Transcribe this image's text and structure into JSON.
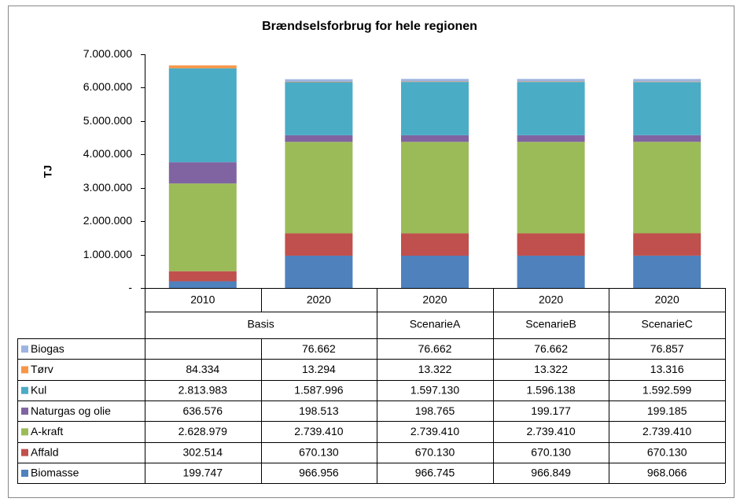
{
  "chart_data": {
    "type": "stacked_bar",
    "title": "Brændselsforbrug for hele regionen",
    "y_label": "TJ",
    "categories": [
      "2010",
      "2020",
      "2020",
      "2020",
      "2020"
    ],
    "groups": [
      {
        "name": "Basis",
        "count": 2
      },
      {
        "name": "ScenarieA",
        "count": 1
      },
      {
        "name": "ScenarieB",
        "count": 1
      },
      {
        "name": "ScenarieC",
        "count": 1
      }
    ],
    "series": [
      {
        "name": "Biogas",
        "color": "#9db4e0",
        "values": [
          null,
          76662,
          76662,
          76662,
          76857
        ],
        "value_labels": [
          null,
          "76.662",
          "76.662",
          "76.662",
          "76.857"
        ]
      },
      {
        "name": "Tørv",
        "color": "#f79646",
        "values": [
          84334,
          13294,
          13322,
          13322,
          13316
        ],
        "value_labels": [
          "84.334",
          "13.294",
          "13.322",
          "13.322",
          "13.316"
        ]
      },
      {
        "name": "Kul",
        "color": "#4bacc6",
        "values": [
          2813983,
          1587996,
          1597130,
          1596138,
          1592599
        ],
        "value_labels": [
          "2.813.983",
          "1.587.996",
          "1.597.130",
          "1.596.138",
          "1.592.599"
        ]
      },
      {
        "name": "Naturgas og olie",
        "color": "#8064a2",
        "values": [
          636576,
          198513,
          198765,
          199177,
          199185
        ],
        "value_labels": [
          "636.576",
          "198.513",
          "198.765",
          "199.177",
          "199.185"
        ]
      },
      {
        "name": "A-kraft",
        "color": "#9bbb59",
        "values": [
          2628979,
          2739410,
          2739410,
          2739410,
          2739410
        ],
        "value_labels": [
          "2.628.979",
          "2.739.410",
          "2.739.410",
          "2.739.410",
          "2.739.410"
        ]
      },
      {
        "name": "Affald",
        "color": "#c0504d",
        "values": [
          302514,
          670130,
          670130,
          670130,
          670130
        ],
        "value_labels": [
          "302.514",
          "670.130",
          "670.130",
          "670.130",
          "670.130"
        ]
      },
      {
        "name": "Biomasse",
        "color": "#4f81bd",
        "values": [
          199747,
          966956,
          966745,
          966849,
          968066
        ],
        "value_labels": [
          "199.747",
          "966.956",
          "966.745",
          "966.849",
          "968.066"
        ]
      }
    ],
    "ylim": [
      0,
      7000000
    ],
    "yticks": [
      {
        "value": 0,
        "label": "-"
      },
      {
        "value": 1000000,
        "label": "1.000.000"
      },
      {
        "value": 2000000,
        "label": "2.000.000"
      },
      {
        "value": 3000000,
        "label": "3.000.000"
      },
      {
        "value": 4000000,
        "label": "4.000.000"
      },
      {
        "value": 5000000,
        "label": "5.000.000"
      },
      {
        "value": 6000000,
        "label": "6.000.000"
      },
      {
        "value": 7000000,
        "label": "7.000.000"
      }
    ],
    "grid": false
  }
}
